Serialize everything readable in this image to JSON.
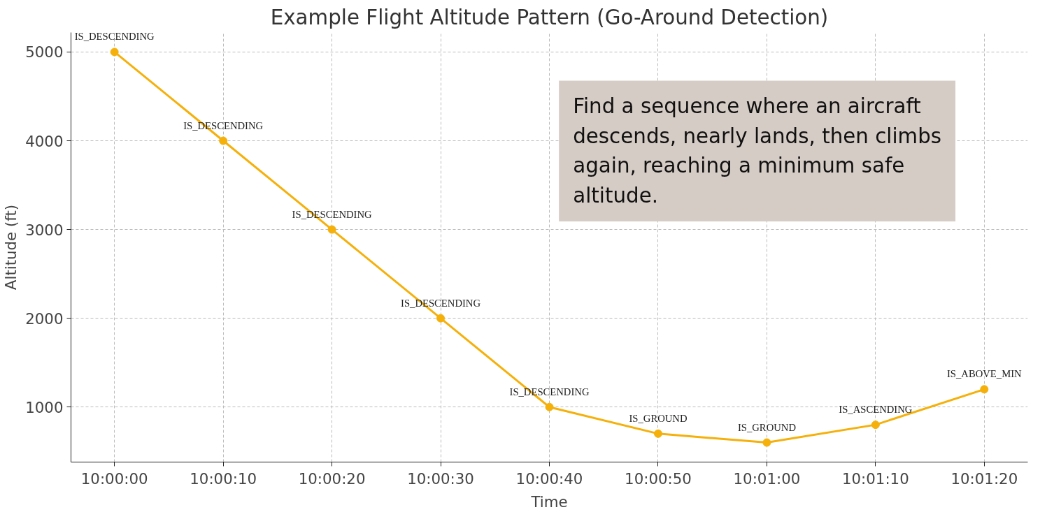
{
  "chart_data": {
    "type": "line",
    "title": "Example Flight Altitude Pattern (Go-Around Detection)",
    "xlabel": "Time",
    "ylabel": "Altitude (ft)",
    "x": [
      10.0,
      10.002778,
      10.005556,
      10.008333,
      10.011111,
      10.013889,
      10.016667,
      10.019444,
      10.022222
    ],
    "series": [
      {
        "color": "#f5b00a",
        "values": [
          5000,
          4000,
          3000,
          2000,
          1000,
          700,
          600,
          800,
          1200
        ],
        "value_labels": [
          "IS_DESCENDING",
          "IS_DESCENDING",
          "IS_DESCENDING",
          "IS_DESCENDING",
          "IS_DESCENDING",
          "IS_GROUND",
          "IS_GROUND",
          "IS_ASCENDING",
          "IS_ABOVE_MIN"
        ]
      }
    ],
    "xlim": [
      9.998889,
      10.023333
    ],
    "xticks": [
      {
        "value": 10.0,
        "label": "10:00:00"
      },
      {
        "value": 10.002778,
        "label": "10:00:10"
      },
      {
        "value": 10.005556,
        "label": "10:00:20"
      },
      {
        "value": 10.008333,
        "label": "10:00:30"
      },
      {
        "value": 10.011111,
        "label": "10:00:40"
      },
      {
        "value": 10.013889,
        "label": "10:00:50"
      },
      {
        "value": 10.016667,
        "label": "10:01:00"
      },
      {
        "value": 10.019444,
        "label": "10:01:10"
      },
      {
        "value": 10.022222,
        "label": "10:01:20"
      }
    ],
    "ylim": [
      380,
      5220
    ],
    "yticks": [
      1000,
      2000,
      3000,
      4000,
      5000
    ],
    "grid": true,
    "marker": "circle",
    "line_style": "solid",
    "annotations": [
      "Find a sequence where an aircraft descends, nearly lands, then climbs again, reaching a minimum safe altitude."
    ]
  }
}
